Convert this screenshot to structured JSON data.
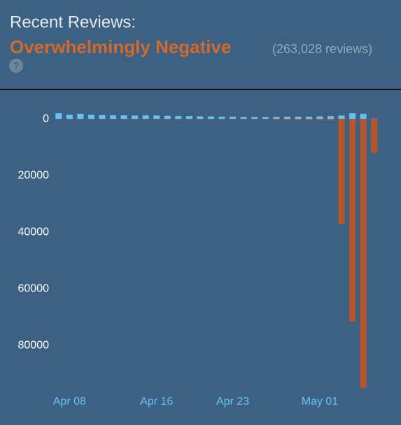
{
  "header": {
    "title": "Recent Reviews:",
    "rating": "Overwhelmingly Negative",
    "count": "(263,028 reviews)",
    "help": "?"
  },
  "chart_data": {
    "type": "bar",
    "categories": [
      null,
      "Apr 08",
      null,
      null,
      null,
      null,
      null,
      null,
      null,
      "Apr 16",
      null,
      null,
      null,
      null,
      null,
      null,
      "Apr 23",
      null,
      null,
      null,
      null,
      null,
      null,
      null,
      "May 01",
      null,
      null,
      null,
      null,
      null
    ],
    "series": [
      {
        "color": "#66c0f4",
        "values": [
          2000,
          1500,
          1800,
          1500,
          1400,
          1300,
          1300,
          1200,
          1300,
          1200,
          1100,
          1000,
          1000,
          900,
          900,
          800,
          800,
          700,
          700,
          700,
          700,
          800,
          800,
          800,
          900,
          1000,
          1200,
          2000,
          1800,
          100
        ]
      },
      {
        "color": "#b5562a",
        "values": [
          -100,
          -100,
          -100,
          -100,
          -100,
          -100,
          -100,
          -100,
          -100,
          -100,
          -100,
          -100,
          -100,
          -100,
          -100,
          -100,
          -100,
          -100,
          -100,
          -100,
          -300,
          -400,
          -400,
          -400,
          -400,
          -500,
          -37000,
          -71500,
          -95000,
          -12000
        ]
      }
    ],
    "ylim": [
      -95000,
      3000
    ],
    "yticks": [
      0,
      {
        "value": -20000,
        "label": "20000"
      },
      {
        "value": -40000,
        "label": "40000"
      },
      {
        "value": -60000,
        "label": "60000"
      },
      {
        "value": -80000,
        "label": "80000"
      }
    ]
  }
}
